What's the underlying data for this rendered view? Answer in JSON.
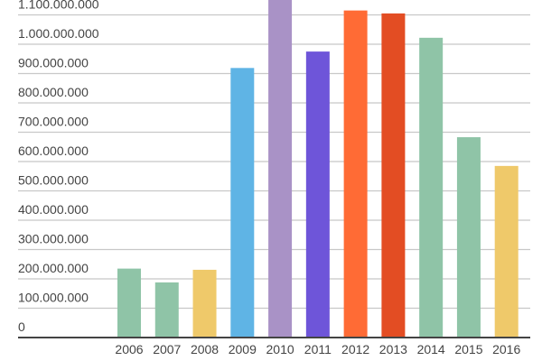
{
  "chart_data": {
    "type": "bar",
    "title": "",
    "xlabel": "",
    "ylabel": "",
    "categories": [
      "2006",
      "2007",
      "2008",
      "2009",
      "2010",
      "2011",
      "2012",
      "2013",
      "2014",
      "2015",
      "2016"
    ],
    "values": [
      235000000,
      188000000,
      231000000,
      919000000,
      1180000000,
      975000000,
      1115000000,
      1105000000,
      1022000000,
      683000000,
      585000000
    ],
    "colors": [
      "#8fc4a7",
      "#8fc4a7",
      "#efc96a",
      "#5fb4e5",
      "#a992c6",
      "#6e55d9",
      "#ff6b35",
      "#e34d23",
      "#8fc4a7",
      "#8fc4a7",
      "#efc96a"
    ],
    "ylim": [
      0,
      1150000000
    ],
    "yticks": [
      0,
      100000000,
      200000000,
      300000000,
      400000000,
      500000000,
      600000000,
      700000000,
      800000000,
      900000000,
      1000000000,
      1100000000
    ],
    "ytick_labels": [
      "0",
      "100.000.000",
      "200.000.000",
      "300.000.000",
      "400.000.000",
      "500.000.000",
      "600.000.000",
      "700.000.000",
      "800.000.000",
      "900.000.000",
      "1.000.000.000",
      "1.100.000.000"
    ],
    "grid": true,
    "legend": "none"
  }
}
